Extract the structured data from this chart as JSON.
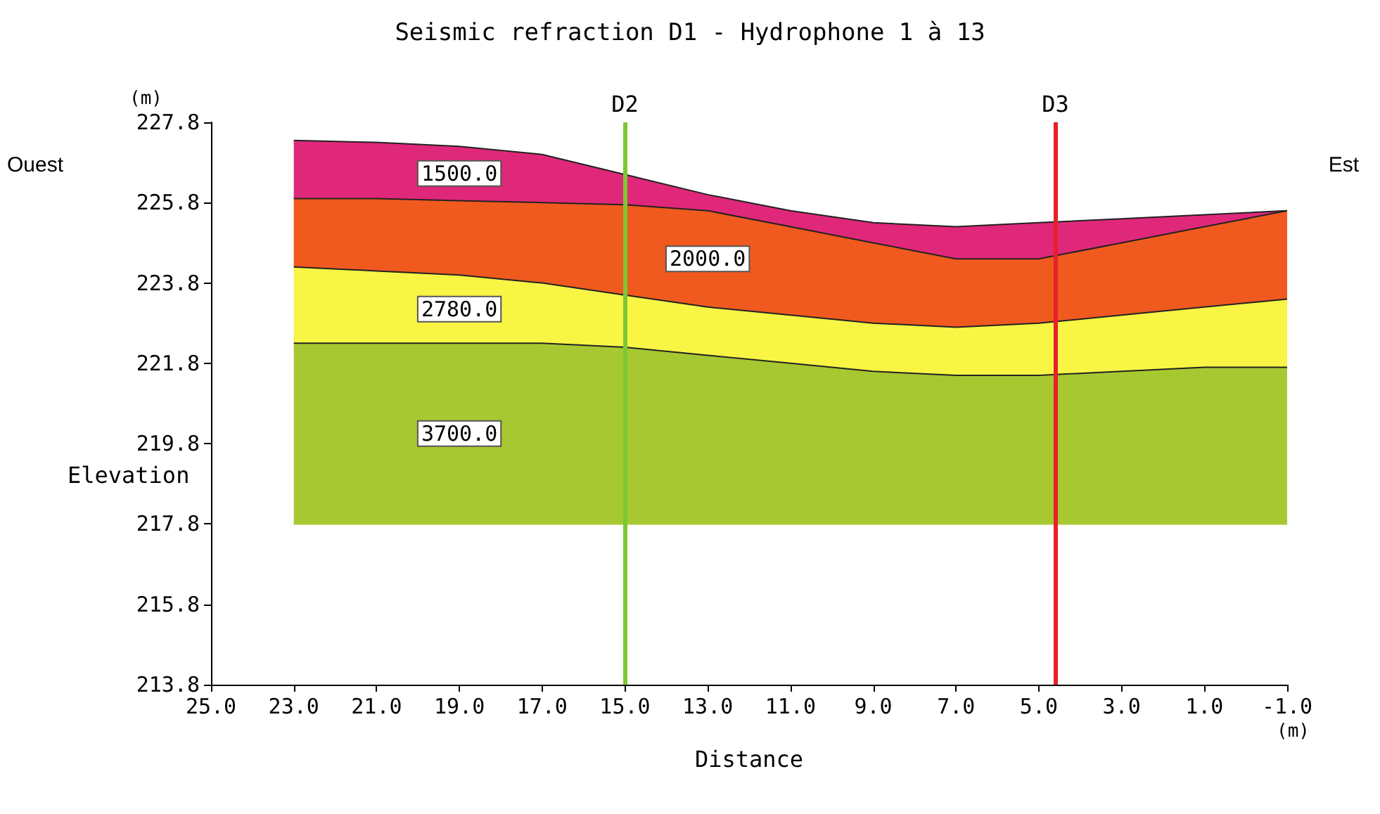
{
  "chart_data": {
    "type": "area",
    "title": "Seismic refraction D1 - Hydrophone 1 à 13",
    "xlabel": "Distance",
    "ylabel": "Elevation",
    "x": [
      23,
      21,
      19,
      17,
      15,
      13,
      11,
      9,
      7,
      5,
      3,
      1,
      -1
    ],
    "series": [
      {
        "name": "1500.0",
        "color": "#e0287a",
        "values": [
          227.35,
          227.3,
          227.2,
          227.0,
          226.5,
          226.0,
          225.6,
          225.3,
          225.2,
          225.3,
          225.4,
          225.5,
          225.6
        ]
      },
      {
        "name": "2000.0",
        "color": "#f05a1e",
        "values": [
          225.9,
          225.9,
          225.85,
          225.8,
          225.75,
          225.6,
          225.2,
          224.8,
          224.4,
          224.4,
          224.8,
          225.2,
          225.6
        ]
      },
      {
        "name": "2780.0",
        "color": "#f8f545",
        "values": [
          224.2,
          224.1,
          224.0,
          223.8,
          223.5,
          223.2,
          223.0,
          222.8,
          222.7,
          222.8,
          223.0,
          223.2,
          223.4
        ]
      },
      {
        "name": "3700.0",
        "color": "#a8c832",
        "values": [
          222.3,
          222.3,
          222.3,
          222.3,
          222.2,
          222.0,
          221.8,
          221.6,
          221.5,
          221.5,
          221.6,
          221.7,
          221.7
        ]
      },
      {
        "type": "line",
        "color": "#a8c832",
        "values": [
          217.8,
          217.8,
          217.8,
          217.8,
          217.8,
          217.8,
          217.8,
          217.8,
          217.8,
          217.8,
          217.8,
          217.8,
          217.8
        ]
      }
    ],
    "xlim": [
      25,
      -1
    ],
    "xticks": [
      {
        "value": 25,
        "label": "25.0"
      },
      {
        "value": 23,
        "label": "23.0"
      },
      {
        "value": 21,
        "label": "21.0"
      },
      {
        "value": 19,
        "label": "19.0"
      },
      {
        "value": 17,
        "label": "17.0"
      },
      {
        "value": 15,
        "label": "15.0"
      },
      {
        "value": 13,
        "label": "13.0"
      },
      {
        "value": 11,
        "label": "11.0"
      },
      {
        "value": 9,
        "label": "9.0"
      },
      {
        "value": 7,
        "label": "7.0"
      },
      {
        "value": 5,
        "label": "5.0"
      },
      {
        "value": 3,
        "label": "3.0"
      },
      {
        "value": 1,
        "label": "1.0"
      },
      {
        "value": -1,
        "label": "-1.0"
      }
    ],
    "ylim": [
      213.8,
      227.8
    ],
    "yticks": [
      213.8,
      215.8,
      217.8,
      219.8,
      221.8,
      223.8,
      225.8,
      227.8
    ],
    "ref_lines": [
      {
        "axis": "x",
        "value": 15,
        "label": "D2",
        "color": "#7cc832"
      },
      {
        "axis": "x",
        "value": 4.6,
        "label": "D3",
        "color": "#e8202a"
      }
    ],
    "annotations": [
      "Ouest",
      "Est",
      "(m)",
      "(m)"
    ],
    "grid": false,
    "legend": false
  }
}
